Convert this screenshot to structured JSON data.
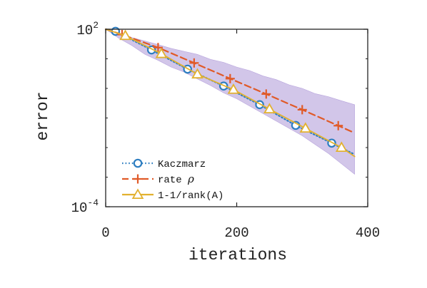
{
  "chart_data": {
    "type": "line",
    "xlabel": "iterations",
    "ylabel": "error",
    "xlim": [
      0,
      400
    ],
    "ylim_log10": [
      -4,
      2
    ],
    "yscale": "log",
    "xticks": [
      0,
      200,
      400
    ],
    "yticks": [
      {
        "base": "10",
        "exp": "2",
        "value_log10": 2
      },
      {
        "base": "10",
        "exp": "-4",
        "value_log10": -4
      }
    ],
    "grid": false,
    "legend_position": "bottom-left",
    "band": {
      "color": "#b7a3dc",
      "x": [
        0,
        20,
        40,
        60,
        80,
        100,
        120,
        140,
        160,
        180,
        200,
        220,
        240,
        260,
        280,
        300,
        320,
        340,
        360,
        380
      ],
      "upper_log10": [
        2.0,
        1.85,
        1.72,
        1.6,
        1.48,
        1.35,
        1.25,
        1.15,
        0.98,
        0.88,
        0.72,
        0.6,
        0.42,
        0.3,
        0.12,
        0.0,
        -0.18,
        -0.28,
        -0.42,
        -0.55
      ],
      "lower_log10": [
        2.0,
        1.7,
        1.45,
        1.15,
        0.95,
        0.72,
        0.55,
        0.32,
        0.1,
        -0.15,
        -0.35,
        -0.6,
        -0.85,
        -1.1,
        -1.35,
        -1.6,
        -1.9,
        -2.2,
        -2.55,
        -2.9
      ]
    },
    "series": [
      {
        "name": "Kaczmarz",
        "color": "#2e7ec1",
        "line_style": "dotted",
        "marker": "circle",
        "x": [
          15,
          70,
          125,
          180,
          235,
          290,
          345
        ],
        "y_log10": [
          1.93,
          1.3,
          0.65,
          0.08,
          -0.55,
          -1.25,
          -1.85
        ]
      },
      {
        "name": "rate ρ",
        "label_text": "rate ",
        "label_symbol": "ρ",
        "color": "#e05a28",
        "line_style": "dashed",
        "marker": "plus",
        "x": [
          25,
          80,
          135,
          190,
          245,
          300,
          355
        ],
        "y_log10": [
          1.82,
          1.38,
          0.86,
          0.33,
          -0.19,
          -0.72,
          -1.26
        ]
      },
      {
        "name": "1-1/rank(A)",
        "color": "#e2b12f",
        "line_style": "solid",
        "marker": "triangle",
        "x": [
          30,
          85,
          140,
          195,
          250,
          305,
          360
        ],
        "y_log10": [
          1.78,
          1.17,
          0.48,
          -0.04,
          -0.7,
          -1.35,
          -2.0
        ],
        "end": {
          "x": 380,
          "y_log10": -2.3
        }
      }
    ]
  }
}
